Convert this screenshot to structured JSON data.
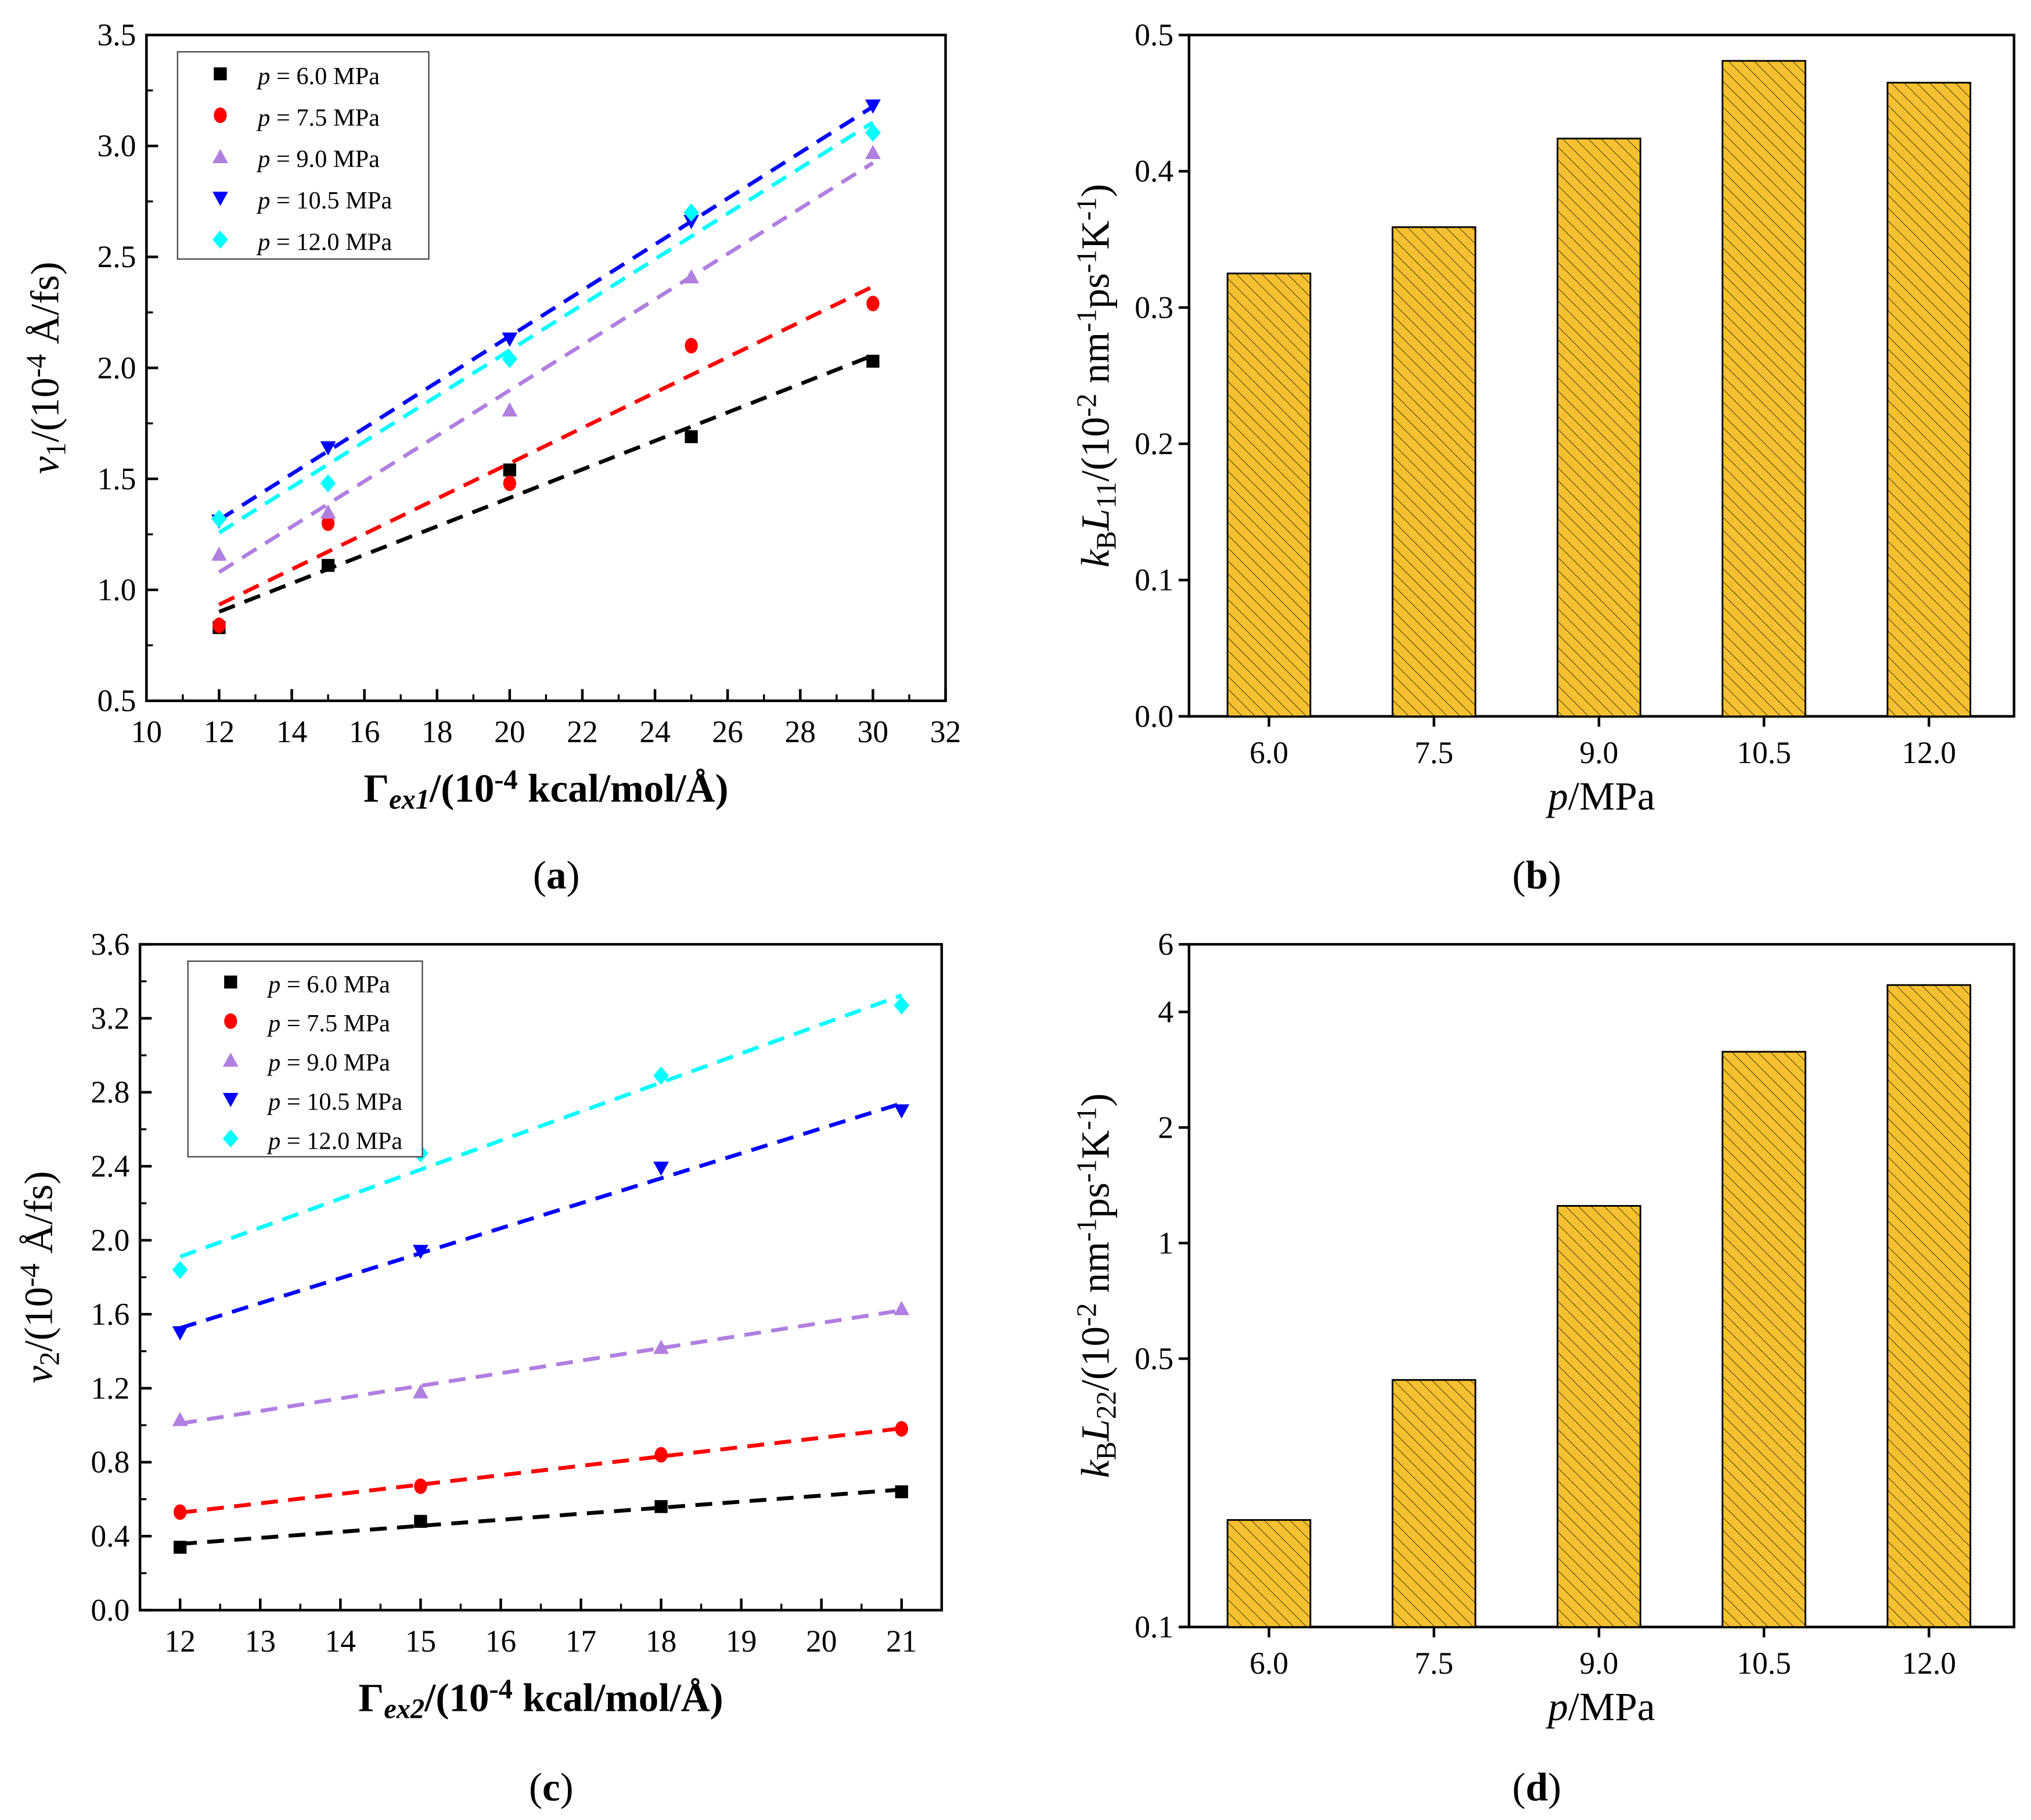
{
  "colors": {
    "s6": "#000000",
    "s75": "#ff0000",
    "s9": "#b07fe0",
    "s105": "#0000ff",
    "s12": "#00ffff",
    "bar": "#f5c132"
  },
  "chart_data": [
    {
      "panel": "a",
      "type": "scatter",
      "panel_label": [
        {
          "t": "("
        },
        {
          "t": "a",
          "s": "b"
        },
        {
          "t": ")"
        }
      ],
      "xlabel": [
        {
          "t": "Γ"
        },
        {
          "t": "ex1",
          "s": "subi"
        },
        {
          "t": "/(10",
          "s": "b"
        },
        {
          "t": "-4",
          "s": "sup"
        },
        {
          "t": " kcal/mol/Å)",
          "s": "b"
        }
      ],
      "ylabel": [
        {
          "t": "v",
          "s": "i"
        },
        {
          "t": "1",
          "s": "sub"
        },
        {
          "t": "/(10"
        },
        {
          "t": "-4",
          "s": "sup"
        },
        {
          "t": " Å/fs)"
        }
      ],
      "xlim": [
        10,
        32
      ],
      "ylim": [
        0.5,
        3.5
      ],
      "xticks": [
        "10",
        "12",
        "14",
        "16",
        "18",
        "20",
        "22",
        "24",
        "26",
        "28",
        "30",
        "32"
      ],
      "yticks": [
        "0.5",
        "1.0",
        "1.5",
        "2.0",
        "2.5",
        "3.0",
        "3.5"
      ],
      "x": [
        12,
        15,
        20,
        25,
        30
      ],
      "fit": "linear dashed",
      "series": [
        {
          "name": "p = 6.0 MPa",
          "p": "p",
          "rest": " = 6.0 MPa",
          "marker": "square",
          "color": "#000000",
          "values": [
            0.83,
            1.11,
            1.54,
            1.69,
            2.03
          ]
        },
        {
          "name": "p = 7.5 MPa",
          "p": "p",
          "rest": " = 7.5 MPa",
          "marker": "circle",
          "color": "#ff0000",
          "values": [
            0.84,
            1.3,
            1.48,
            2.1,
            2.29
          ]
        },
        {
          "name": "p = 9.0 MPa",
          "p": "p",
          "rest": " = 9.0 MPa",
          "marker": "triangle-up",
          "color": "#b07fe0",
          "values": [
            1.16,
            1.35,
            1.81,
            2.41,
            2.97
          ]
        },
        {
          "name": "p = 10.5 MPa",
          "p": "p",
          "rest": " = 10.5 MPa",
          "marker": "triangle-down",
          "color": "#0000ff",
          "values": [
            1.31,
            1.64,
            2.13,
            2.66,
            3.18
          ]
        },
        {
          "name": "p = 12.0 MPa",
          "p": "p",
          "rest": " = 12.0 MPa",
          "marker": "diamond",
          "color": "#00ffff",
          "values": [
            1.32,
            1.48,
            2.04,
            2.7,
            3.06
          ]
        }
      ],
      "legend": "top-left"
    },
    {
      "panel": "b",
      "type": "bar",
      "panel_label": [
        {
          "t": "("
        },
        {
          "t": "b",
          "s": "b"
        },
        {
          "t": ")"
        }
      ],
      "xlabel": [
        {
          "t": "p",
          "s": "i"
        },
        {
          "t": "/MPa"
        }
      ],
      "ylabel": [
        {
          "t": "k",
          "s": "i"
        },
        {
          "t": "B",
          "s": "sub"
        },
        {
          "t": "L",
          "s": "i"
        },
        {
          "t": "11",
          "s": "sub"
        },
        {
          "t": "/(10"
        },
        {
          "t": "-2",
          "s": "sup"
        },
        {
          "t": " nm"
        },
        {
          "t": "-1",
          "s": "sup"
        },
        {
          "t": "ps"
        },
        {
          "t": "-1",
          "s": "sup"
        },
        {
          "t": "K"
        },
        {
          "t": "-1",
          "s": "sup"
        },
        {
          "t": ")"
        }
      ],
      "categories": [
        "6.0",
        "7.5",
        "9.0",
        "10.5",
        "12.0"
      ],
      "values": [
        0.325,
        0.359,
        0.424,
        0.481,
        0.465
      ],
      "ylim": [
        0,
        0.5
      ],
      "yscale": "linear",
      "yticks": [
        "0.0",
        "0.1",
        "0.2",
        "0.3",
        "0.4",
        "0.5"
      ]
    },
    {
      "panel": "c",
      "type": "scatter",
      "panel_label": [
        {
          "t": "("
        },
        {
          "t": "c",
          "s": "b"
        },
        {
          "t": ")"
        }
      ],
      "xlabel": [
        {
          "t": "Γ"
        },
        {
          "t": "ex2",
          "s": "subi"
        },
        {
          "t": "/(10",
          "s": "b"
        },
        {
          "t": "-4",
          "s": "sup"
        },
        {
          "t": " kcal/mol/Å)",
          "s": "b"
        }
      ],
      "ylabel": [
        {
          "t": "v",
          "s": "i"
        },
        {
          "t": "2",
          "s": "sub"
        },
        {
          "t": "/(10"
        },
        {
          "t": "-4",
          "s": "sup"
        },
        {
          "t": " Å/fs)"
        }
      ],
      "xlim": [
        11.5,
        21.5
      ],
      "ylim": [
        0.0,
        3.6
      ],
      "xticks": [
        "12",
        "13",
        "14",
        "15",
        "16",
        "17",
        "18",
        "19",
        "20",
        "21"
      ],
      "yticks": [
        "0.0",
        "0.4",
        "0.8",
        "1.2",
        "1.6",
        "2.0",
        "2.4",
        "2.8",
        "3.2",
        "3.6"
      ],
      "x": [
        12,
        15,
        18,
        21
      ],
      "fit": "dashed",
      "series": [
        {
          "name": "p = 6.0 MPa",
          "p": "p",
          "rest": " = 6.0 MPa",
          "marker": "square",
          "color": "#000000",
          "values": [
            0.34,
            0.48,
            0.56,
            0.64
          ]
        },
        {
          "name": "p = 7.5 MPa",
          "p": "p",
          "rest": " = 7.5 MPa",
          "marker": "circle",
          "color": "#ff0000",
          "values": [
            0.53,
            0.67,
            0.84,
            0.98
          ]
        },
        {
          "name": "p = 9.0 MPa",
          "p": "p",
          "rest": " = 9.0 MPa",
          "marker": "triangle-up",
          "color": "#b07fe0",
          "values": [
            1.03,
            1.18,
            1.42,
            1.63
          ]
        },
        {
          "name": "p = 10.5 MPa",
          "p": "p",
          "rest": " = 10.5 MPa",
          "marker": "triangle-down",
          "color": "#0000ff",
          "values": [
            1.5,
            1.94,
            2.39,
            2.7
          ]
        },
        {
          "name": "p = 12.0 MPa",
          "p": "p",
          "rest": " = 12.0 MPa",
          "marker": "diamond",
          "color": "#00ffff",
          "values": [
            1.84,
            2.47,
            2.89,
            3.27
          ]
        }
      ],
      "legend": "top-left"
    },
    {
      "panel": "d",
      "type": "bar",
      "panel_label": [
        {
          "t": "("
        },
        {
          "t": "d",
          "s": "b"
        },
        {
          "t": ")"
        }
      ],
      "xlabel": [
        {
          "t": "p",
          "s": "i"
        },
        {
          "t": "/MPa"
        }
      ],
      "ylabel": [
        {
          "t": "k",
          "s": "i"
        },
        {
          "t": "B",
          "s": "sub"
        },
        {
          "t": "L",
          "s": "i"
        },
        {
          "t": "22",
          "s": "sub"
        },
        {
          "t": "/(10"
        },
        {
          "t": "-2",
          "s": "sup"
        },
        {
          "t": " nm"
        },
        {
          "t": "-1",
          "s": "sup"
        },
        {
          "t": "ps"
        },
        {
          "t": "-1",
          "s": "sup"
        },
        {
          "t": "K"
        },
        {
          "t": "-1",
          "s": "sup"
        },
        {
          "t": ")"
        }
      ],
      "categories": [
        "6.0",
        "7.5",
        "9.0",
        "10.5",
        "12.0"
      ],
      "values": [
        0.19,
        0.44,
        1.25,
        3.15,
        4.7
      ],
      "ylim": [
        0.1,
        6
      ],
      "yscale": "log",
      "yticks": [
        "0.1",
        "0.5",
        "1",
        "2",
        "4",
        "6"
      ]
    }
  ]
}
